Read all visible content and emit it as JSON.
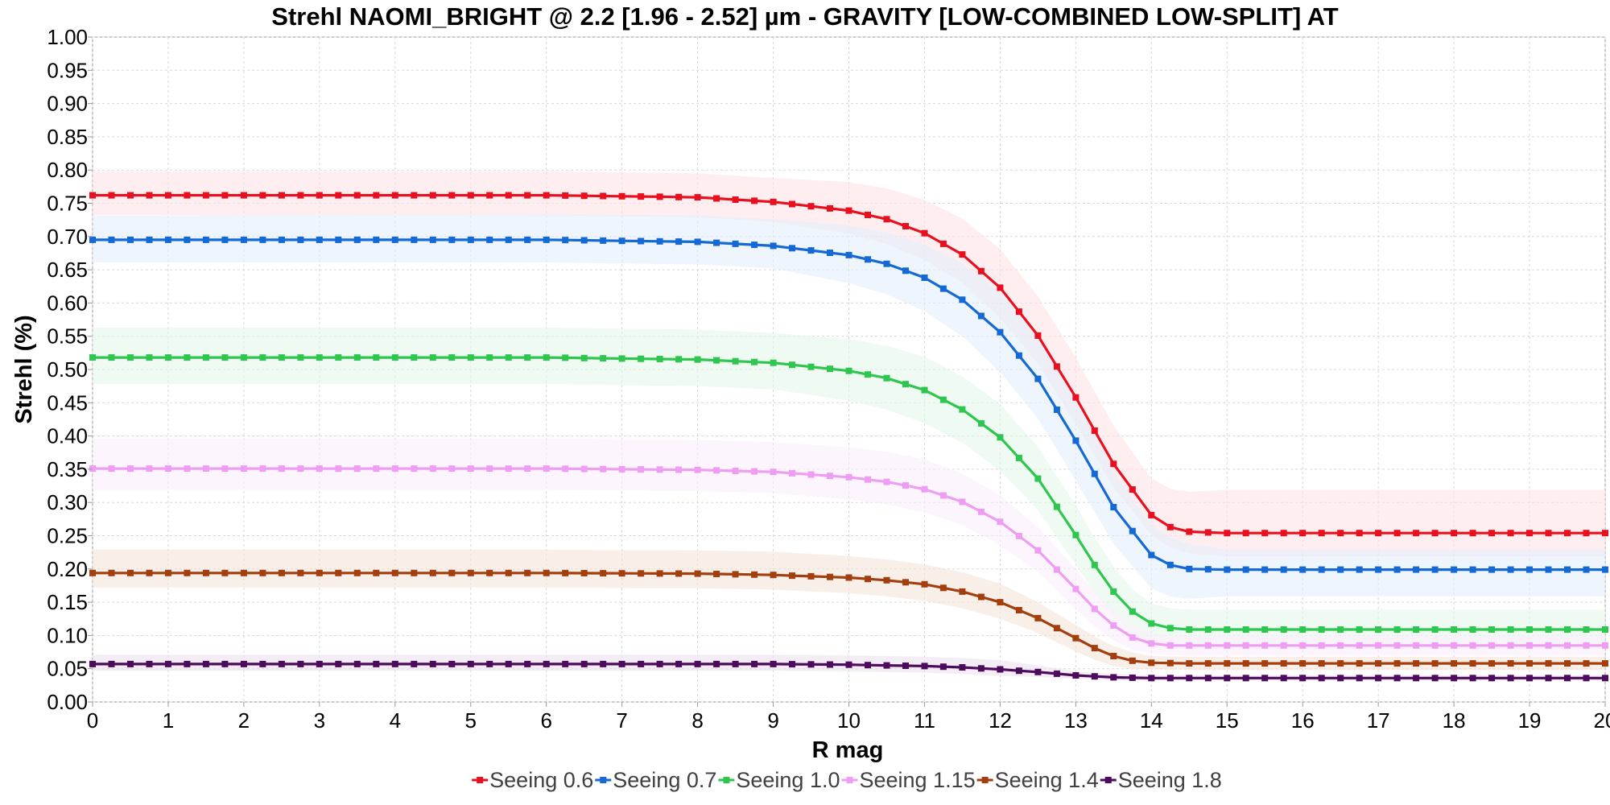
{
  "chart_data": {
    "type": "line",
    "title": "Strehl NAOMI_BRIGHT @ 2.2 [1.96 - 2.52] µm - GRAVITY [LOW-COMBINED LOW-SPLIT] AT",
    "xlabel": "R mag",
    "ylabel": "Strehl (%)",
    "xlim": [
      0,
      20
    ],
    "ylim": [
      0,
      1
    ],
    "x_ticks": [
      "0",
      "1",
      "2",
      "3",
      "4",
      "5",
      "6",
      "7",
      "8",
      "9",
      "10",
      "11",
      "12",
      "13",
      "14",
      "15",
      "16",
      "17",
      "18",
      "19",
      "20"
    ],
    "y_ticks": [
      "0.00",
      "0.05",
      "0.10",
      "0.15",
      "0.20",
      "0.25",
      "0.30",
      "0.35",
      "0.40",
      "0.45",
      "0.50",
      "0.55",
      "0.60",
      "0.65",
      "0.70",
      "0.75",
      "0.80",
      "0.85",
      "0.90",
      "0.95",
      "1.00"
    ],
    "grid": true,
    "legend_position": "bottom-center",
    "marker": "square",
    "x_step": 0.25,
    "series": [
      {
        "name": "Seeing 0.6",
        "color": "#e8101e",
        "band_color": "#fde3e5",
        "anchors": [
          [
            0,
            0.762
          ],
          [
            6,
            0.762
          ],
          [
            8,
            0.759
          ],
          [
            9,
            0.752
          ],
          [
            10,
            0.739
          ],
          [
            10.5,
            0.726
          ],
          [
            11,
            0.705
          ],
          [
            11.5,
            0.673
          ],
          [
            12,
            0.623
          ],
          [
            12.5,
            0.551
          ],
          [
            13,
            0.458
          ],
          [
            13.5,
            0.358
          ],
          [
            14,
            0.281
          ],
          [
            14.25,
            0.263
          ],
          [
            14.5,
            0.256
          ],
          [
            15,
            0.254
          ],
          [
            20,
            0.254
          ]
        ],
        "band": [
          [
            0,
            0.03,
            0.036
          ],
          [
            9,
            0.03,
            0.036
          ],
          [
            11,
            0.04,
            0.05
          ],
          [
            12,
            0.045,
            0.058
          ],
          [
            13,
            0.04,
            0.06
          ],
          [
            14,
            0.03,
            0.055
          ],
          [
            15,
            0.035,
            0.065
          ],
          [
            20,
            0.035,
            0.065
          ]
        ]
      },
      {
        "name": "Seeing 0.7",
        "color": "#1569d4",
        "band_color": "#e3effb",
        "anchors": [
          [
            0,
            0.695
          ],
          [
            6,
            0.695
          ],
          [
            8,
            0.692
          ],
          [
            9,
            0.686
          ],
          [
            10,
            0.672
          ],
          [
            10.5,
            0.659
          ],
          [
            11,
            0.638
          ],
          [
            11.5,
            0.605
          ],
          [
            12,
            0.556
          ],
          [
            12.5,
            0.486
          ],
          [
            13,
            0.393
          ],
          [
            13.5,
            0.293
          ],
          [
            14,
            0.221
          ],
          [
            14.25,
            0.206
          ],
          [
            14.5,
            0.2
          ],
          [
            15,
            0.199
          ],
          [
            20,
            0.199
          ]
        ],
        "band": [
          [
            0,
            0.034,
            0.036
          ],
          [
            9,
            0.034,
            0.04
          ],
          [
            11,
            0.05,
            0.05
          ],
          [
            12,
            0.06,
            0.06
          ],
          [
            13,
            0.06,
            0.06
          ],
          [
            14,
            0.05,
            0.045
          ],
          [
            15,
            0.04,
            0.03
          ],
          [
            20,
            0.04,
            0.03
          ]
        ]
      },
      {
        "name": "Seeing 1.0",
        "color": "#2ec64e",
        "band_color": "#e5f7ea",
        "anchors": [
          [
            0,
            0.518
          ],
          [
            6,
            0.518
          ],
          [
            8,
            0.515
          ],
          [
            9,
            0.51
          ],
          [
            10,
            0.498
          ],
          [
            10.5,
            0.487
          ],
          [
            11,
            0.469
          ],
          [
            11.5,
            0.44
          ],
          [
            12,
            0.398
          ],
          [
            12.5,
            0.336
          ],
          [
            13,
            0.251
          ],
          [
            13.25,
            0.206
          ],
          [
            13.5,
            0.166
          ],
          [
            13.75,
            0.136
          ],
          [
            14,
            0.118
          ],
          [
            14.25,
            0.111
          ],
          [
            14.5,
            0.109
          ],
          [
            20,
            0.109
          ]
        ],
        "band": [
          [
            0,
            0.04,
            0.045
          ],
          [
            9,
            0.04,
            0.045
          ],
          [
            11,
            0.05,
            0.05
          ],
          [
            12,
            0.05,
            0.05
          ],
          [
            13,
            0.045,
            0.045
          ],
          [
            14,
            0.03,
            0.03
          ],
          [
            15,
            0.03,
            0.03
          ],
          [
            20,
            0.03,
            0.03
          ]
        ]
      },
      {
        "name": "Seeing 1.15",
        "color": "#ee9ef2",
        "band_color": "#fbeefd",
        "anchors": [
          [
            0,
            0.351
          ],
          [
            6,
            0.351
          ],
          [
            8,
            0.349
          ],
          [
            9,
            0.346
          ],
          [
            10,
            0.338
          ],
          [
            10.5,
            0.331
          ],
          [
            11,
            0.32
          ],
          [
            11.5,
            0.301
          ],
          [
            12,
            0.271
          ],
          [
            12.5,
            0.228
          ],
          [
            13,
            0.17
          ],
          [
            13.25,
            0.14
          ],
          [
            13.5,
            0.115
          ],
          [
            13.75,
            0.097
          ],
          [
            14,
            0.088
          ],
          [
            14.25,
            0.085
          ],
          [
            14.5,
            0.085
          ],
          [
            20,
            0.085
          ]
        ],
        "band": [
          [
            0,
            0.032,
            0.045
          ],
          [
            9,
            0.032,
            0.045
          ],
          [
            11,
            0.035,
            0.045
          ],
          [
            12,
            0.035,
            0.04
          ],
          [
            13,
            0.03,
            0.03
          ],
          [
            14,
            0.015,
            0.015
          ],
          [
            15,
            0.015,
            0.015
          ],
          [
            20,
            0.015,
            0.015
          ]
        ]
      },
      {
        "name": "Seeing 1.4",
        "color": "#a33e0e",
        "band_color": "#f3e4da",
        "anchors": [
          [
            0,
            0.194
          ],
          [
            6,
            0.194
          ],
          [
            8,
            0.193
          ],
          [
            9,
            0.191
          ],
          [
            10,
            0.187
          ],
          [
            10.5,
            0.183
          ],
          [
            11,
            0.177
          ],
          [
            11.5,
            0.166
          ],
          [
            12,
            0.15
          ],
          [
            12.5,
            0.126
          ],
          [
            13,
            0.096
          ],
          [
            13.25,
            0.081
          ],
          [
            13.5,
            0.069
          ],
          [
            13.75,
            0.062
          ],
          [
            14,
            0.059
          ],
          [
            14.5,
            0.058
          ],
          [
            20,
            0.058
          ]
        ],
        "band": [
          [
            0,
            0.022,
            0.035
          ],
          [
            9,
            0.022,
            0.035
          ],
          [
            11,
            0.025,
            0.03
          ],
          [
            12,
            0.025,
            0.028
          ],
          [
            13,
            0.02,
            0.02
          ],
          [
            14,
            0.01,
            0.01
          ],
          [
            20,
            0.01,
            0.01
          ]
        ]
      },
      {
        "name": "Seeing 1.8",
        "color": "#4c0b5c",
        "band_color": "#ece1ef",
        "anchors": [
          [
            0,
            0.057
          ],
          [
            6,
            0.057
          ],
          [
            8,
            0.057
          ],
          [
            9,
            0.057
          ],
          [
            10,
            0.056
          ],
          [
            11,
            0.054
          ],
          [
            11.5,
            0.052
          ],
          [
            12,
            0.049
          ],
          [
            12.5,
            0.045
          ],
          [
            13,
            0.04
          ],
          [
            13.5,
            0.037
          ],
          [
            14,
            0.036
          ],
          [
            20,
            0.036
          ]
        ],
        "band": [
          [
            0,
            0.01,
            0.014
          ],
          [
            12,
            0.01,
            0.014
          ],
          [
            13,
            0.005,
            0.006
          ],
          [
            14,
            0.004,
            0.004
          ],
          [
            20,
            0.004,
            0.004
          ]
        ]
      }
    ]
  }
}
